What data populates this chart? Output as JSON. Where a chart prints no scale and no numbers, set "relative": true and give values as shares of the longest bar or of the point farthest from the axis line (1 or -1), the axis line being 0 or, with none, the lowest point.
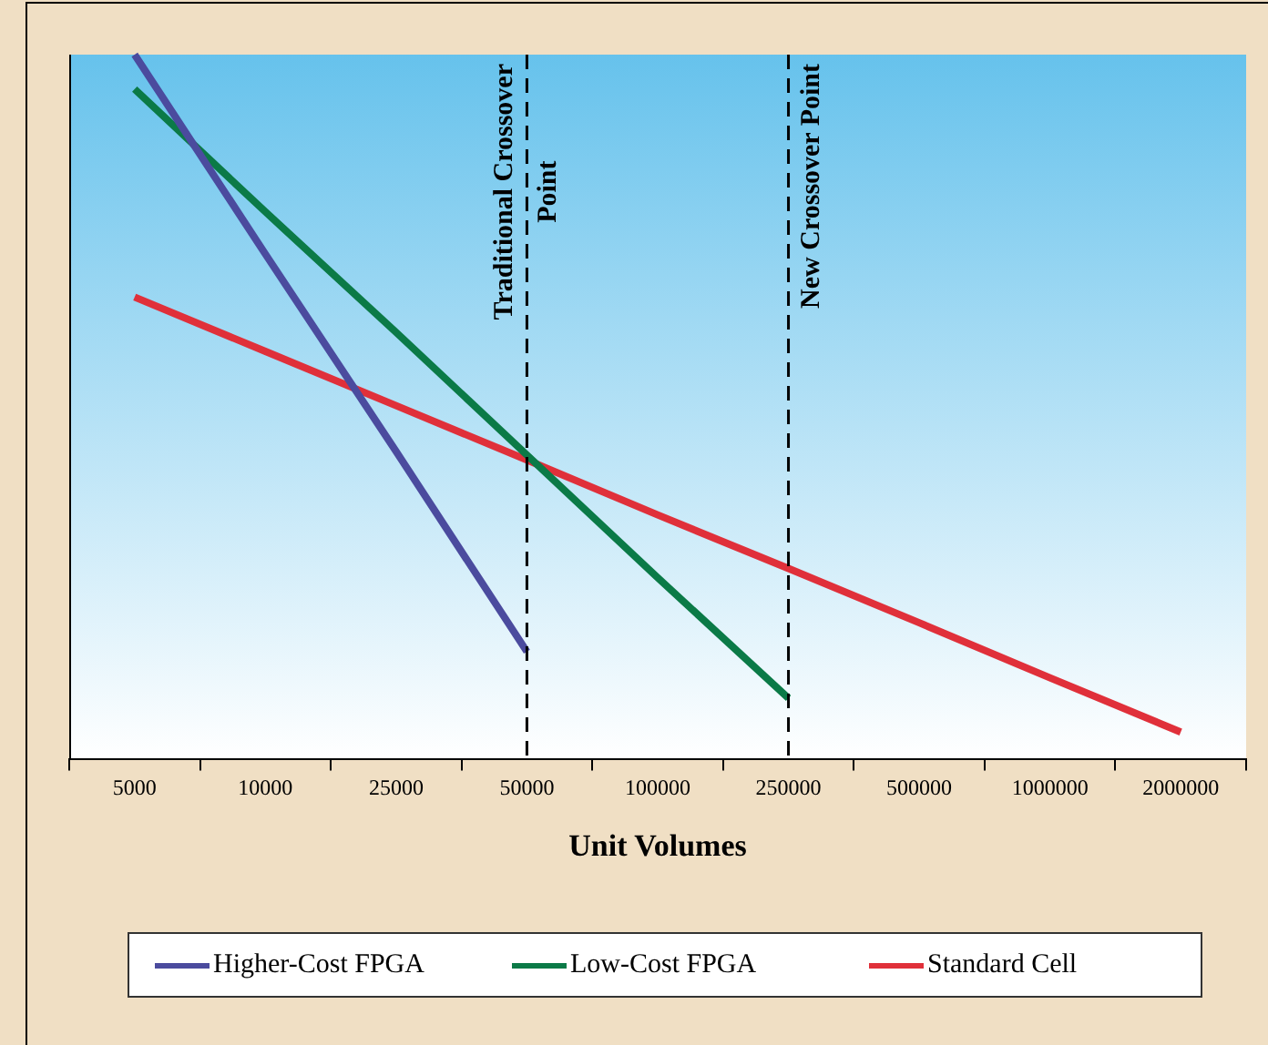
{
  "chart_data": {
    "type": "line",
    "relative": true,
    "xlabel": "Unit Volumes",
    "categories": [
      "5000",
      "10000",
      "25000",
      "50000",
      "100000",
      "250000",
      "500000",
      "1000000",
      "2000000"
    ],
    "series": [
      {
        "name": "Higher-Cost FPGA",
        "color": "#4b4b9e",
        "values": [
          1,
          0.717,
          0.437,
          0.153,
          null,
          null,
          null,
          null,
          null
        ]
      },
      {
        "name": "Low-Cost FPGA",
        "color": "#0b7a47",
        "values": [
          0.951,
          0.777,
          0.606,
          0.432,
          0.258,
          0.087,
          null,
          null,
          null
        ]
      },
      {
        "name": "Standard Cell",
        "color": "#e0303a",
        "values": [
          0.656,
          0.579,
          0.502,
          0.425,
          0.347,
          0.271,
          0.194,
          0.116,
          0.039
        ]
      }
    ],
    "ref_lines": [
      {
        "axis": "x",
        "value": "50000",
        "label": "Traditional Crossover Point",
        "color": "#000000",
        "line_style": "dashed"
      },
      {
        "axis": "x",
        "value": "250000",
        "label": "New Crossover Point",
        "color": "#000000",
        "line_style": "dashed"
      }
    ],
    "grid": false,
    "legend": "bottom",
    "marker": "none",
    "line_style": "solid"
  }
}
